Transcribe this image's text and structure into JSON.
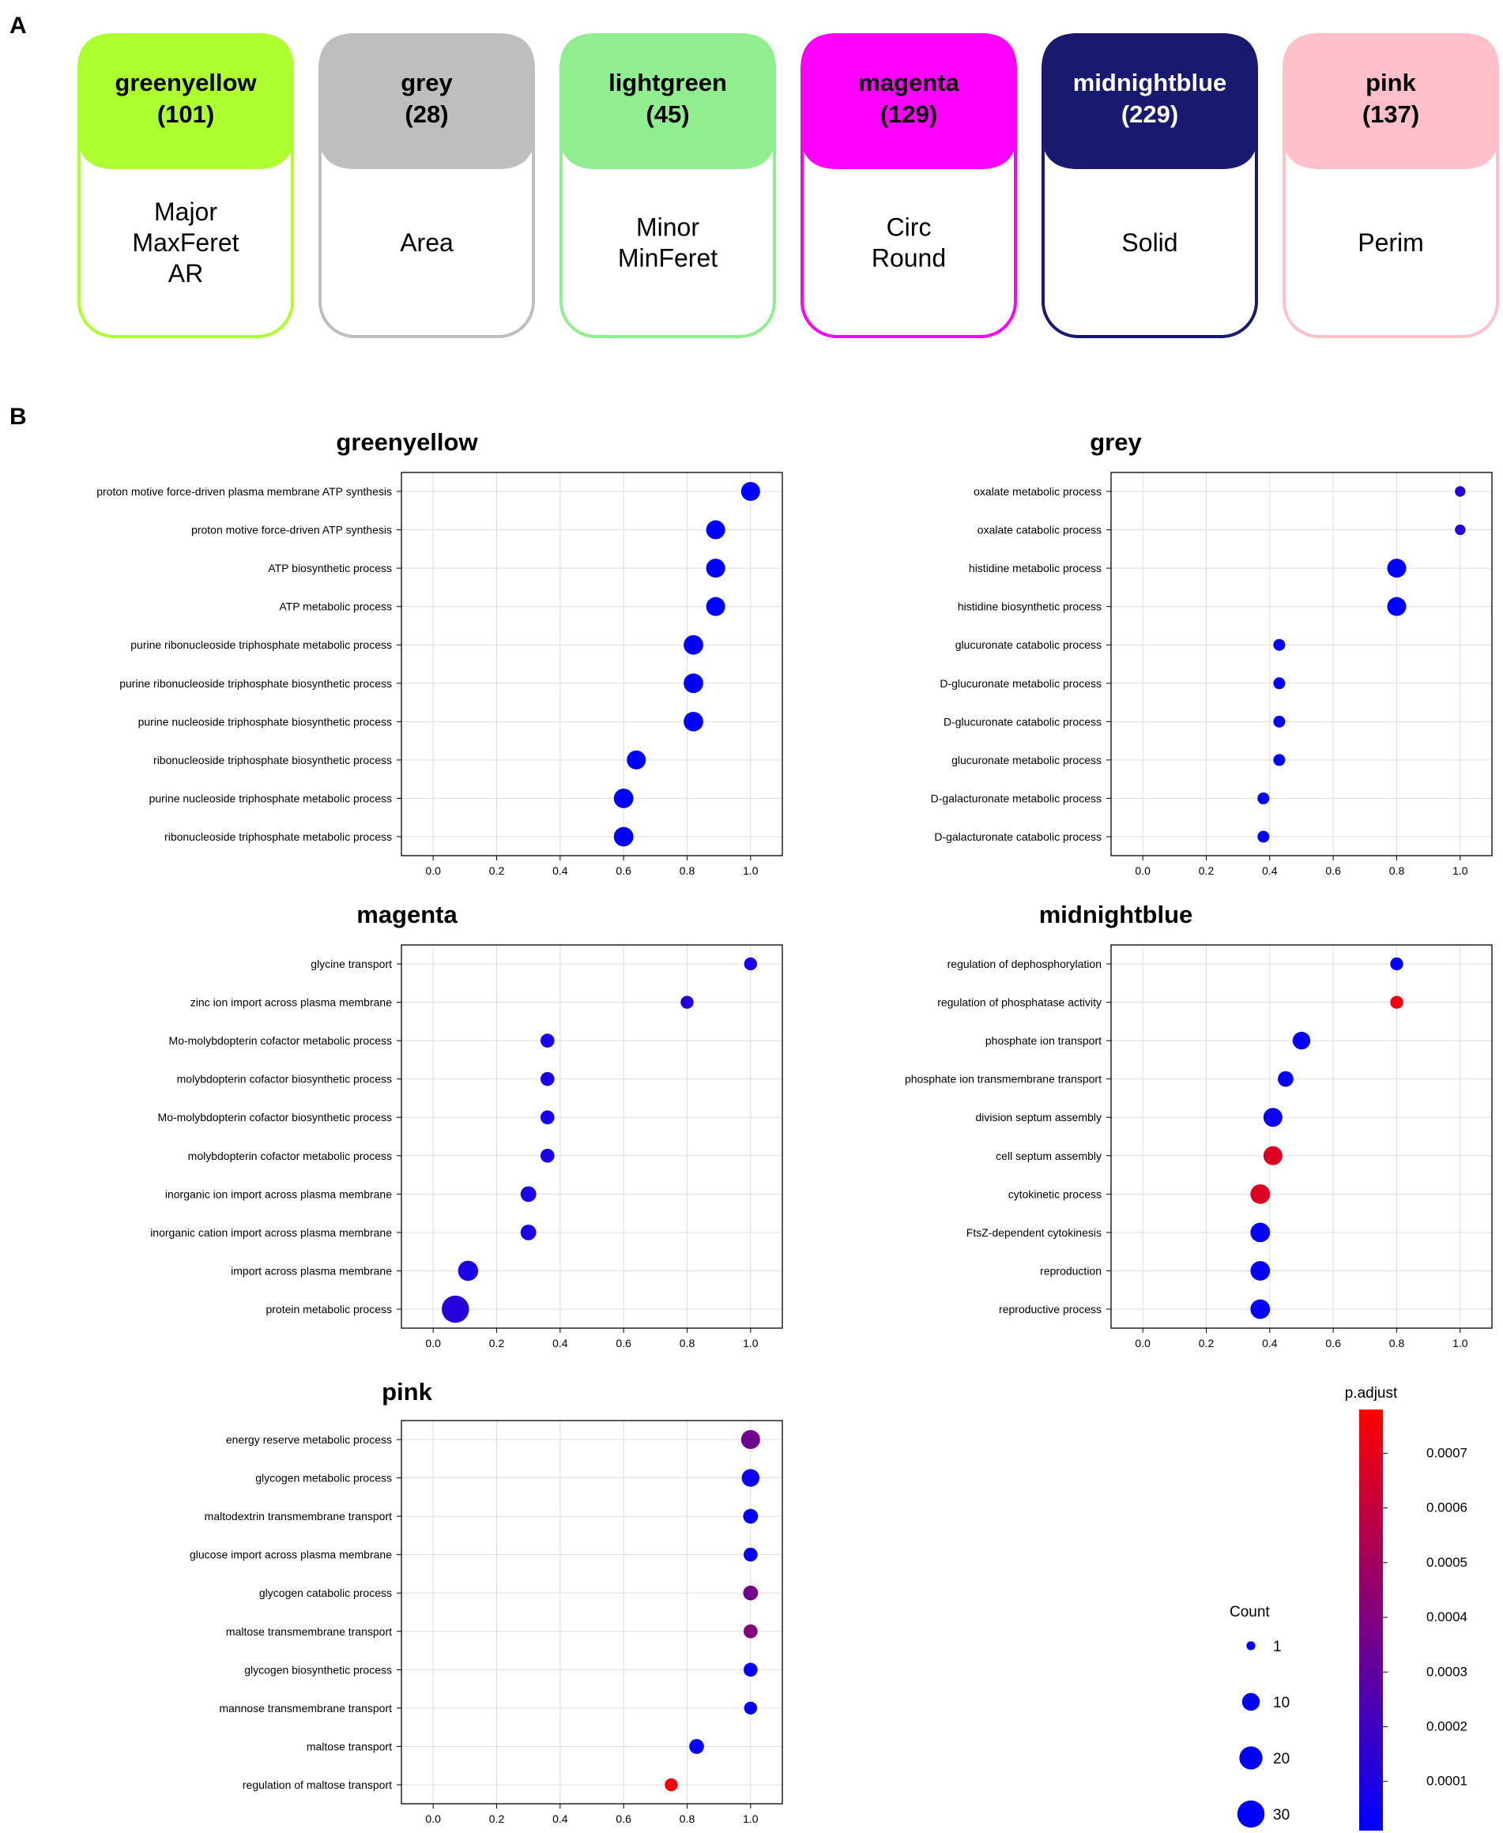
{
  "panel_labels": {
    "a": "A",
    "b": "B"
  },
  "module_cards": [
    {
      "name": "greenyellow",
      "count": "(101)",
      "color": "#adff2f",
      "title_text_color": "#000000",
      "traits": [
        "Major",
        "MaxFeret",
        "AR"
      ]
    },
    {
      "name": "grey",
      "count": "(28)",
      "color": "#bebebe",
      "title_text_color": "#000000",
      "traits": [
        "Area"
      ]
    },
    {
      "name": "lightgreen",
      "count": "(45)",
      "color": "#90ee90",
      "title_text_color": "#000000",
      "traits": [
        "Minor",
        "MinFeret"
      ]
    },
    {
      "name": "magenta",
      "count": "(129)",
      "color": "#ff00ff",
      "title_text_color": "#000000",
      "traits": [
        "Circ",
        "Round"
      ]
    },
    {
      "name": "midnightblue",
      "count": "(229)",
      "color": "#191970",
      "title_text_color": "#ffffff",
      "traits": [
        "Solid"
      ]
    },
    {
      "name": "pink",
      "count": "(137)",
      "color": "#ffc0cb",
      "title_text_color": "#000000",
      "traits": [
        "Perim"
      ]
    }
  ],
  "chart_data": [
    {
      "type": "scatter",
      "title": "greenyellow",
      "xlim": [
        -0.1,
        1.1
      ],
      "xticks": [
        "0.0",
        "0.2",
        "0.4",
        "0.6",
        "0.8",
        "1.0"
      ],
      "xlabel": "",
      "ylabel": "",
      "grid": true,
      "points": [
        {
          "term": "proton motive force-driven plasma membrane ATP synthesis",
          "x": 1.0,
          "count": 12,
          "p_adjust": 1e-05
        },
        {
          "term": "proton motive force-driven ATP synthesis",
          "x": 0.89,
          "count": 12,
          "p_adjust": 1e-05
        },
        {
          "term": "ATP biosynthetic process",
          "x": 0.89,
          "count": 12,
          "p_adjust": 1e-05
        },
        {
          "term": "ATP metabolic process",
          "x": 0.89,
          "count": 12,
          "p_adjust": 1e-05
        },
        {
          "term": "purine ribonucleoside triphosphate metabolic process",
          "x": 0.82,
          "count": 13,
          "p_adjust": 1e-05
        },
        {
          "term": "purine ribonucleoside triphosphate biosynthetic process",
          "x": 0.82,
          "count": 13,
          "p_adjust": 1e-05
        },
        {
          "term": "purine nucleoside triphosphate biosynthetic process",
          "x": 0.82,
          "count": 13,
          "p_adjust": 1e-05
        },
        {
          "term": "ribonucleoside triphosphate biosynthetic process",
          "x": 0.64,
          "count": 12,
          "p_adjust": 1e-05
        },
        {
          "term": "purine nucleoside triphosphate metabolic process",
          "x": 0.6,
          "count": 13,
          "p_adjust": 1e-05
        },
        {
          "term": "ribonucleoside triphosphate metabolic process",
          "x": 0.6,
          "count": 13,
          "p_adjust": 1e-05
        }
      ]
    },
    {
      "type": "scatter",
      "title": "grey",
      "xlim": [
        -0.1,
        1.1
      ],
      "xticks": [
        "0.0",
        "0.2",
        "0.4",
        "0.6",
        "0.8",
        "1.0"
      ],
      "xlabel": "",
      "ylabel": "",
      "grid": true,
      "points": [
        {
          "term": "oxalate metabolic process",
          "x": 1.0,
          "count": 2,
          "p_adjust": 0.00012
        },
        {
          "term": "oxalate catabolic process",
          "x": 1.0,
          "count": 2,
          "p_adjust": 0.00012
        },
        {
          "term": "histidine metabolic process",
          "x": 0.8,
          "count": 12,
          "p_adjust": 1e-05
        },
        {
          "term": "histidine biosynthetic process",
          "x": 0.8,
          "count": 12,
          "p_adjust": 1e-05
        },
        {
          "term": "glucuronate catabolic process",
          "x": 0.43,
          "count": 3,
          "p_adjust": 2e-05
        },
        {
          "term": "D-glucuronate metabolic process",
          "x": 0.43,
          "count": 3,
          "p_adjust": 2e-05
        },
        {
          "term": "D-glucuronate catabolic process",
          "x": 0.43,
          "count": 3,
          "p_adjust": 2e-05
        },
        {
          "term": "glucuronate metabolic process",
          "x": 0.43,
          "count": 3,
          "p_adjust": 2e-05
        },
        {
          "term": "D-galacturonate metabolic process",
          "x": 0.38,
          "count": 3,
          "p_adjust": 2e-05
        },
        {
          "term": "D-galacturonate catabolic process",
          "x": 0.38,
          "count": 3,
          "p_adjust": 2e-05
        }
      ]
    },
    {
      "type": "scatter",
      "title": "magenta",
      "xlim": [
        -0.1,
        1.1
      ],
      "xticks": [
        "0.0",
        "0.2",
        "0.4",
        "0.6",
        "0.8",
        "1.0"
      ],
      "xlabel": "",
      "ylabel": "",
      "grid": true,
      "points": [
        {
          "term": "glycine transport",
          "x": 1.0,
          "count": 4,
          "p_adjust": 8e-05
        },
        {
          "term": "zinc ion import across plasma membrane",
          "x": 0.8,
          "count": 4,
          "p_adjust": 0.00012
        },
        {
          "term": "Mo-molybdopterin cofactor metabolic process",
          "x": 0.36,
          "count": 5,
          "p_adjust": 8e-05
        },
        {
          "term": "molybdopterin cofactor biosynthetic process",
          "x": 0.36,
          "count": 5,
          "p_adjust": 8e-05
        },
        {
          "term": "Mo-molybdopterin cofactor biosynthetic process",
          "x": 0.36,
          "count": 5,
          "p_adjust": 8e-05
        },
        {
          "term": "molybdopterin cofactor metabolic process",
          "x": 0.36,
          "count": 5,
          "p_adjust": 8e-05
        },
        {
          "term": "inorganic ion import across plasma membrane",
          "x": 0.3,
          "count": 7,
          "p_adjust": 8e-05
        },
        {
          "term": "inorganic cation import across plasma membrane",
          "x": 0.3,
          "count": 7,
          "p_adjust": 8e-05
        },
        {
          "term": "import across plasma membrane",
          "x": 0.11,
          "count": 14,
          "p_adjust": 9e-05
        },
        {
          "term": "protein metabolic process",
          "x": 0.07,
          "count": 30,
          "p_adjust": 0.00012
        }
      ]
    },
    {
      "type": "scatter",
      "title": "midnightblue",
      "xlim": [
        -0.1,
        1.1
      ],
      "xticks": [
        "0.0",
        "0.2",
        "0.4",
        "0.6",
        "0.8",
        "1.0"
      ],
      "xlabel": "",
      "ylabel": "",
      "grid": true,
      "points": [
        {
          "term": "regulation of dephosphorylation",
          "x": 0.8,
          "count": 4,
          "p_adjust": 2e-05
        },
        {
          "term": "regulation of phosphatase activity",
          "x": 0.8,
          "count": 4,
          "p_adjust": 0.00075
        },
        {
          "term": "phosphate ion transport",
          "x": 0.5,
          "count": 10,
          "p_adjust": 3e-05
        },
        {
          "term": "phosphate ion transmembrane transport",
          "x": 0.45,
          "count": 7,
          "p_adjust": 3e-05
        },
        {
          "term": "division septum assembly",
          "x": 0.41,
          "count": 12,
          "p_adjust": 5e-05
        },
        {
          "term": "cell septum assembly",
          "x": 0.41,
          "count": 12,
          "p_adjust": 0.00068
        },
        {
          "term": "cytokinetic process",
          "x": 0.37,
          "count": 13,
          "p_adjust": 0.00068
        },
        {
          "term": "FtsZ-dependent cytokinesis",
          "x": 0.37,
          "count": 13,
          "p_adjust": 3e-05
        },
        {
          "term": "reproduction",
          "x": 0.37,
          "count": 13,
          "p_adjust": 3e-05
        },
        {
          "term": "reproductive process",
          "x": 0.37,
          "count": 13,
          "p_adjust": 3e-05
        }
      ]
    },
    {
      "type": "scatter",
      "title": "pink",
      "xlim": [
        -0.1,
        1.1
      ],
      "xticks": [
        "0.0",
        "0.2",
        "0.4",
        "0.6",
        "0.8",
        "1.0"
      ],
      "xlabel": "",
      "ylabel": "",
      "grid": true,
      "points": [
        {
          "term": "energy reserve metabolic process",
          "x": 1.0,
          "count": 12,
          "p_adjust": 0.00035
        },
        {
          "term": "glycogen metabolic process",
          "x": 1.0,
          "count": 10,
          "p_adjust": 5e-05
        },
        {
          "term": "maltodextrin transmembrane transport",
          "x": 1.0,
          "count": 6,
          "p_adjust": 3e-05
        },
        {
          "term": "glucose import across plasma membrane",
          "x": 1.0,
          "count": 5,
          "p_adjust": 3e-05
        },
        {
          "term": "glycogen catabolic process",
          "x": 1.0,
          "count": 6,
          "p_adjust": 0.00035
        },
        {
          "term": "maltose transmembrane transport",
          "x": 1.0,
          "count": 5,
          "p_adjust": 0.0004
        },
        {
          "term": "glycogen biosynthetic process",
          "x": 1.0,
          "count": 5,
          "p_adjust": 2e-05
        },
        {
          "term": "mannose transmembrane transport",
          "x": 1.0,
          "count": 4,
          "p_adjust": 2e-05
        },
        {
          "term": "maltose transport",
          "x": 0.83,
          "count": 6,
          "p_adjust": 3e-05
        },
        {
          "term": "regulation of maltose transport",
          "x": 0.75,
          "count": 4,
          "p_adjust": 0.00075
        }
      ]
    }
  ],
  "legend": {
    "count_title": "Count",
    "count_entries": [
      {
        "label": "1",
        "value": 1
      },
      {
        "label": "10",
        "value": 10
      },
      {
        "label": "20",
        "value": 20
      },
      {
        "label": "30",
        "value": 30
      }
    ],
    "color_title": "p.adjust",
    "color_range": [
      1e-05,
      0.00078
    ],
    "color_low": "#0000ff",
    "color_high": "#ff0000",
    "color_ticks": [
      {
        "label": "0.0001",
        "value": 0.0001
      },
      {
        "label": "0.0002",
        "value": 0.0002
      },
      {
        "label": "0.0003",
        "value": 0.0003
      },
      {
        "label": "0.0004",
        "value": 0.0004
      },
      {
        "label": "0.0005",
        "value": 0.0005
      },
      {
        "label": "0.0006",
        "value": 0.0006
      },
      {
        "label": "0.0007",
        "value": 0.0007
      }
    ]
  }
}
